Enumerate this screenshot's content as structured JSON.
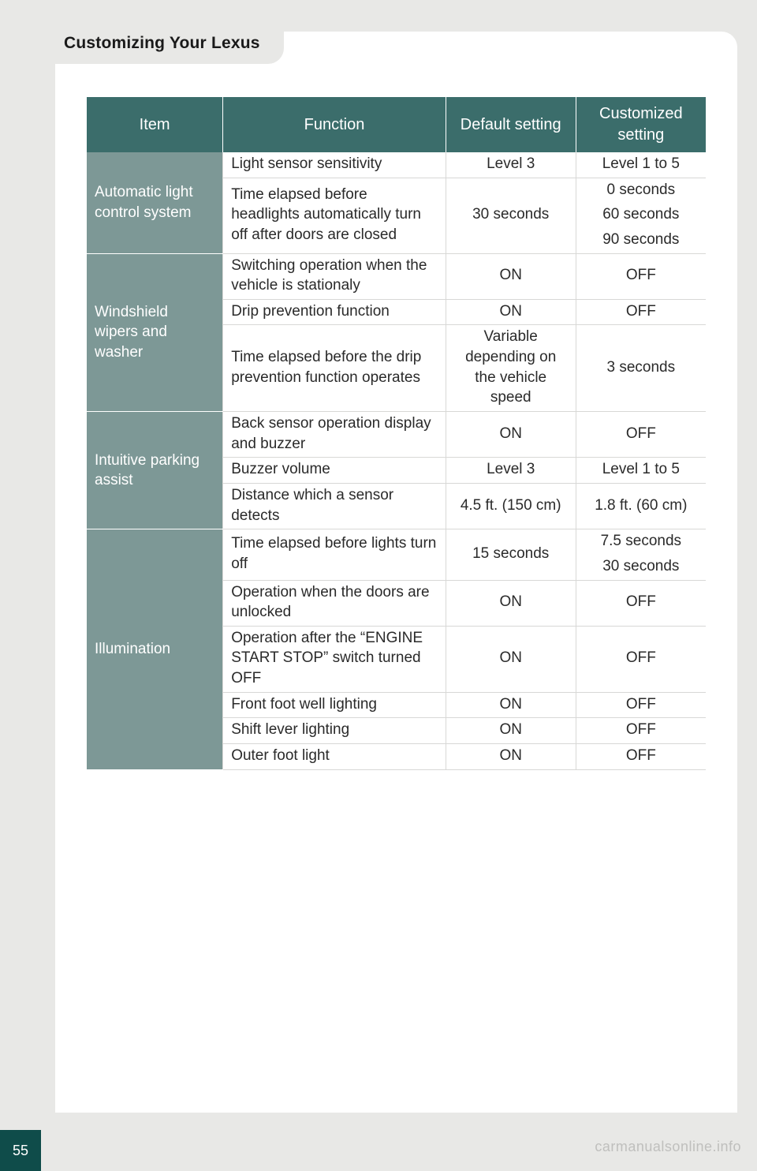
{
  "page": {
    "title": "Customizing Your Lexus",
    "number": "55",
    "watermark": "carmanualsonline.info"
  },
  "colors": {
    "page_bg": "#e8e8e6",
    "card_bg": "#ffffff",
    "header_bg": "#3b6d6b",
    "item_bg": "#7d9896",
    "pagenum_bg": "#0f4c4a",
    "text": "#2a2a2a"
  },
  "table": {
    "headers": {
      "item": "Item",
      "function": "Function",
      "default": "Default setting",
      "custom": "Customized setting"
    },
    "groups": [
      {
        "item": "Automatic light control system",
        "rows": [
          {
            "function": "Light sensor sensitivity",
            "default": "Level 3",
            "custom": [
              "Level 1 to 5"
            ]
          },
          {
            "function": "Time elapsed before headlights automatically turn off after doors are closed",
            "default": "30 seconds",
            "custom": [
              "0 seconds",
              "60 seconds",
              "90 seconds"
            ]
          }
        ]
      },
      {
        "item": "Windshield wipers and washer",
        "rows": [
          {
            "function": "Switching operation when the vehicle is stationaly",
            "default": "ON",
            "custom": [
              "OFF"
            ]
          },
          {
            "function": "Drip prevention function",
            "default": "ON",
            "custom": [
              "OFF"
            ]
          },
          {
            "function": "Time elapsed before the drip prevention function operates",
            "default": "Variable depending on the vehicle speed",
            "custom": [
              "3 seconds"
            ]
          }
        ]
      },
      {
        "item": "Intuitive parking assist",
        "rows": [
          {
            "function": "Back sensor operation display and buzzer",
            "default": "ON",
            "custom": [
              "OFF"
            ]
          },
          {
            "function": "Buzzer volume",
            "default": "Level 3",
            "custom": [
              "Level 1 to 5"
            ]
          },
          {
            "function": "Distance which a sensor detects",
            "default": "4.5 ft. (150 cm)",
            "custom": [
              "1.8 ft. (60 cm)"
            ]
          }
        ]
      },
      {
        "item": "Illumination",
        "rows": [
          {
            "function": "Time elapsed before lights turn off",
            "default": "15 seconds",
            "custom": [
              "7.5 seconds",
              "30 seconds"
            ]
          },
          {
            "function": "Operation when the doors are unlocked",
            "default": "ON",
            "custom": [
              "OFF"
            ]
          },
          {
            "function": "Operation after the “ENGINE START STOP” switch turned OFF",
            "default": "ON",
            "custom": [
              "OFF"
            ]
          },
          {
            "function": "Front foot well lighting",
            "default": "ON",
            "custom": [
              "OFF"
            ]
          },
          {
            "function": "Shift lever lighting",
            "default": "ON",
            "custom": [
              "OFF"
            ]
          },
          {
            "function": "Outer foot light",
            "default": "ON",
            "custom": [
              "OFF"
            ]
          }
        ]
      }
    ]
  }
}
